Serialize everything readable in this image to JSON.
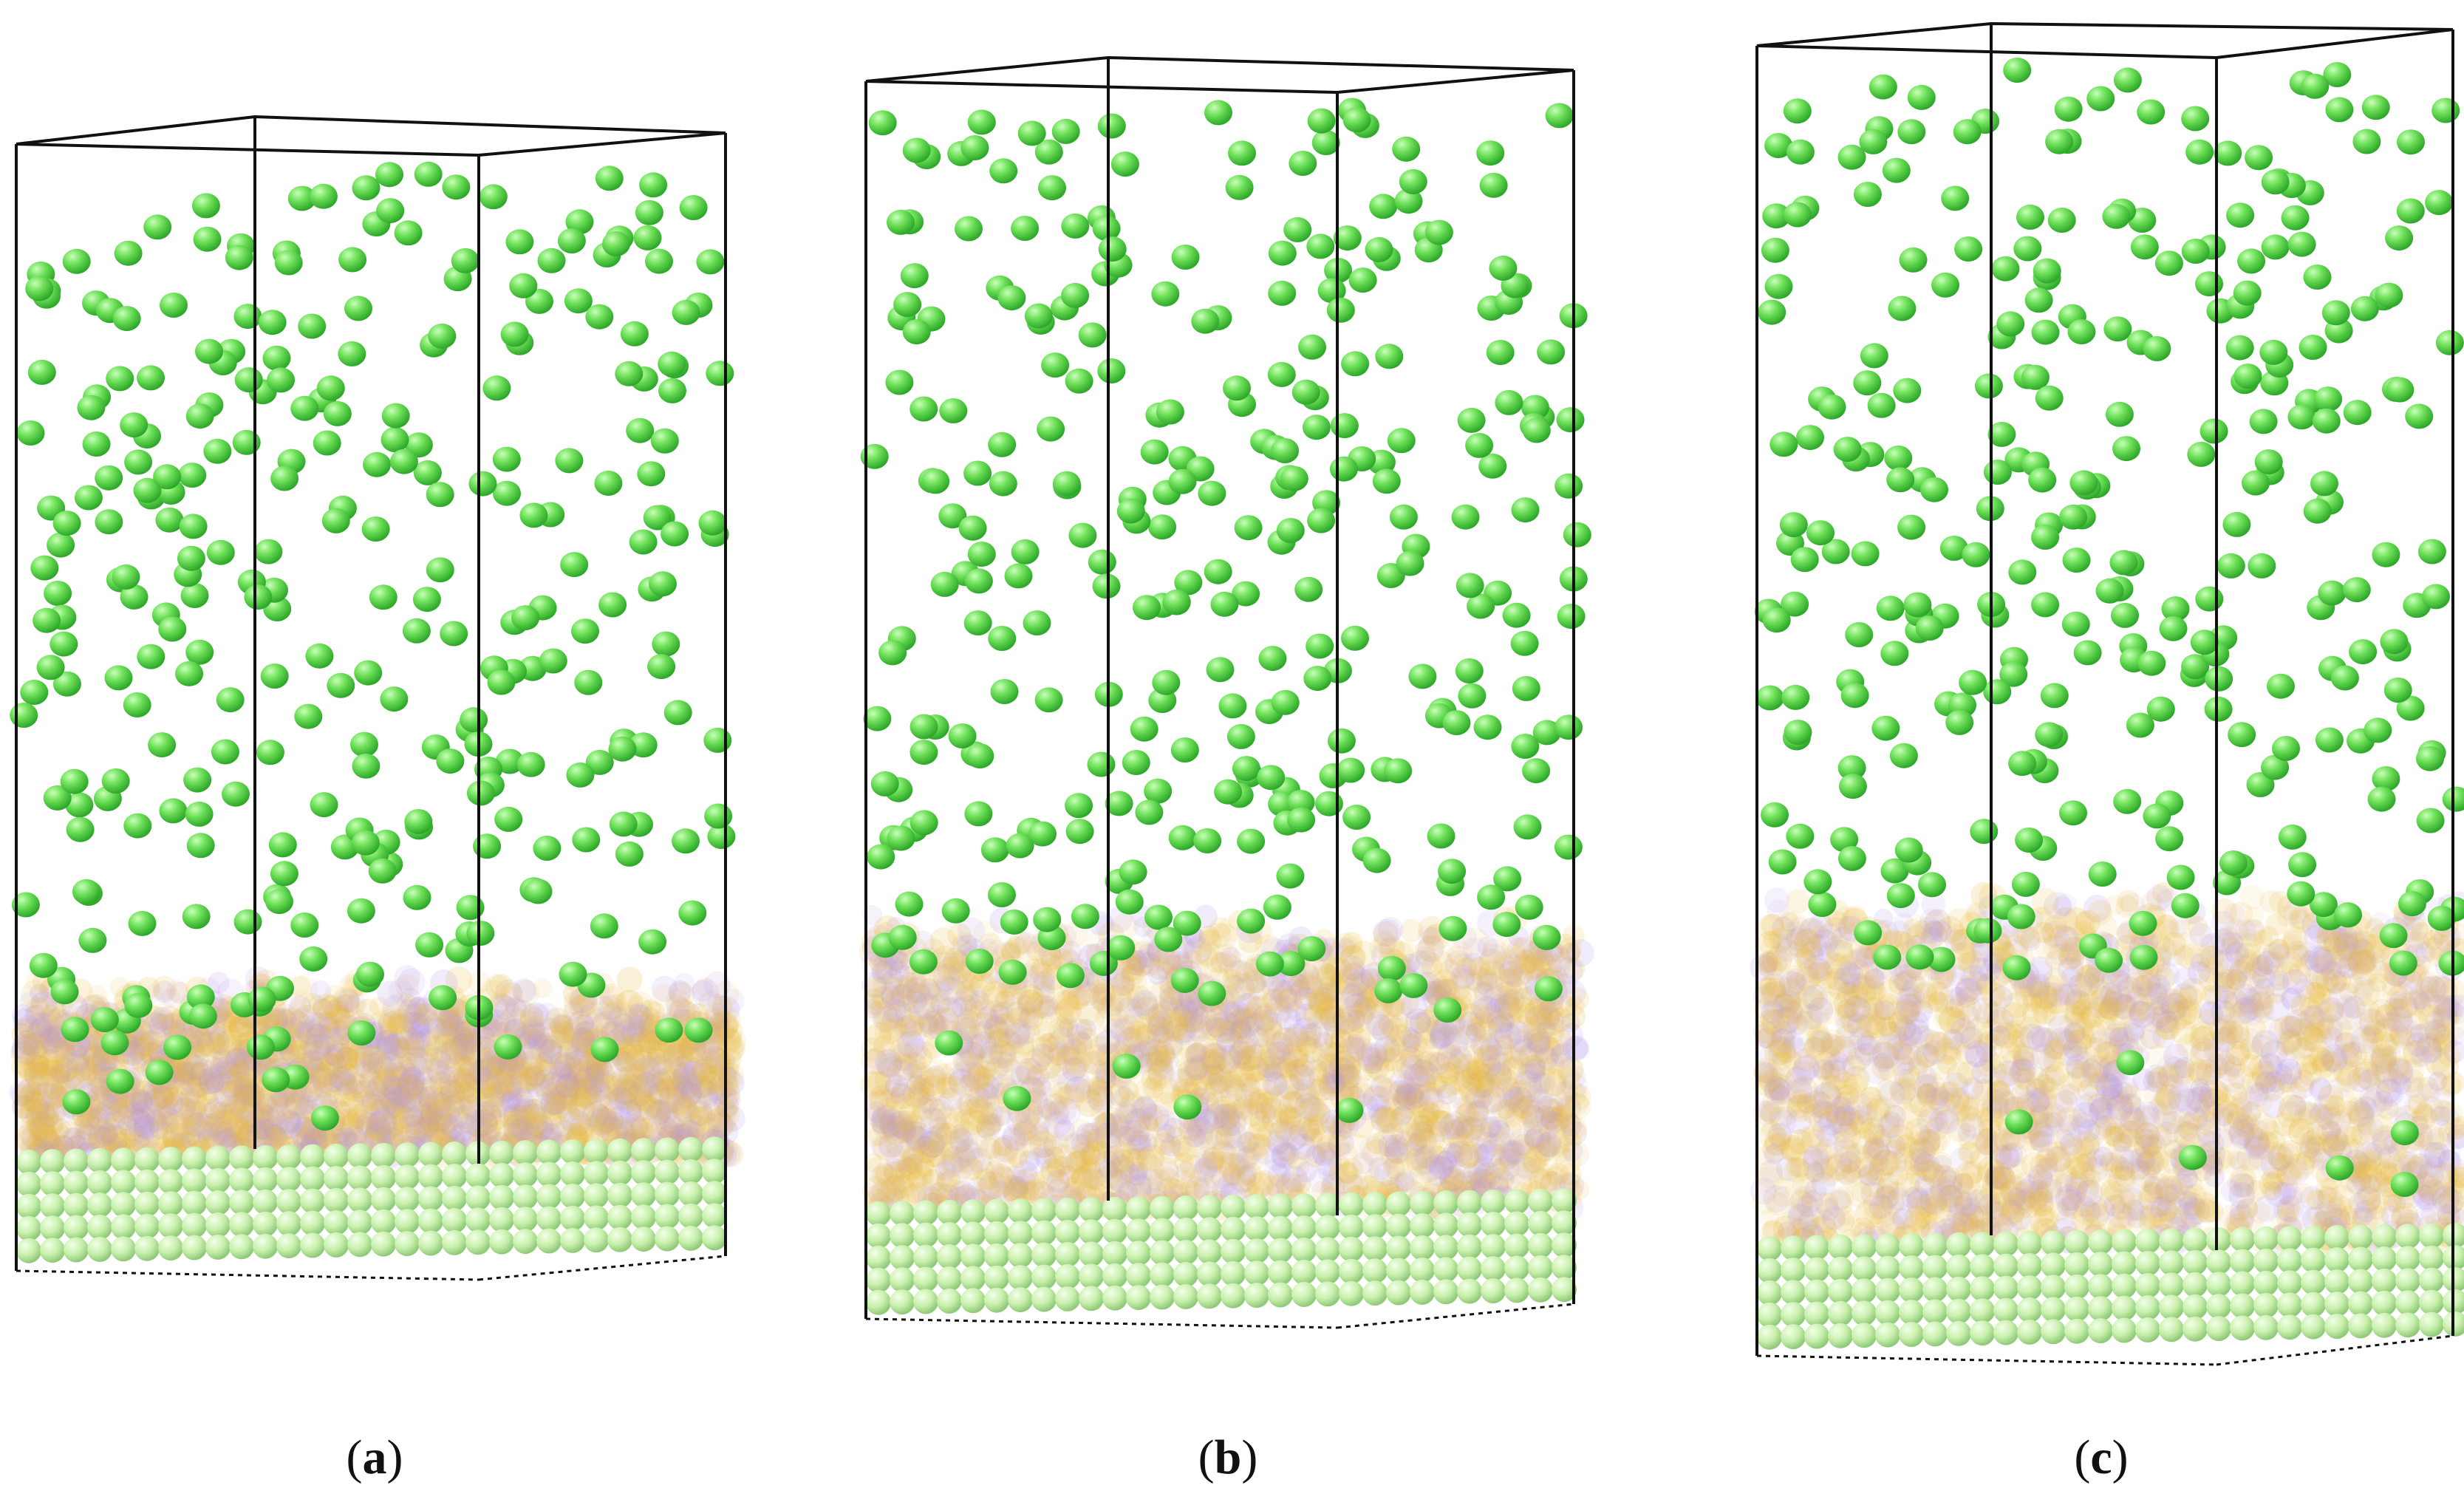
{
  "figure": {
    "panels": [
      {
        "id": "a",
        "label_open": "(",
        "label_letter": "a",
        "label_close": ")"
      },
      {
        "id": "b",
        "label_open": "(",
        "label_letter": "b",
        "label_close": ")"
      },
      {
        "id": "c",
        "label_open": "(",
        "label_letter": "c",
        "label_close": ")"
      }
    ],
    "colors": {
      "gas_atom": "#6fe05a",
      "gas_atom_dark": "#2ea82a",
      "substrate_atom": "#c9f0ad",
      "substrate_atom_dark": "#8fc978",
      "film_gold": "#e8b93c",
      "film_violet": "#b394e8",
      "box_edge": "#111111"
    }
  }
}
